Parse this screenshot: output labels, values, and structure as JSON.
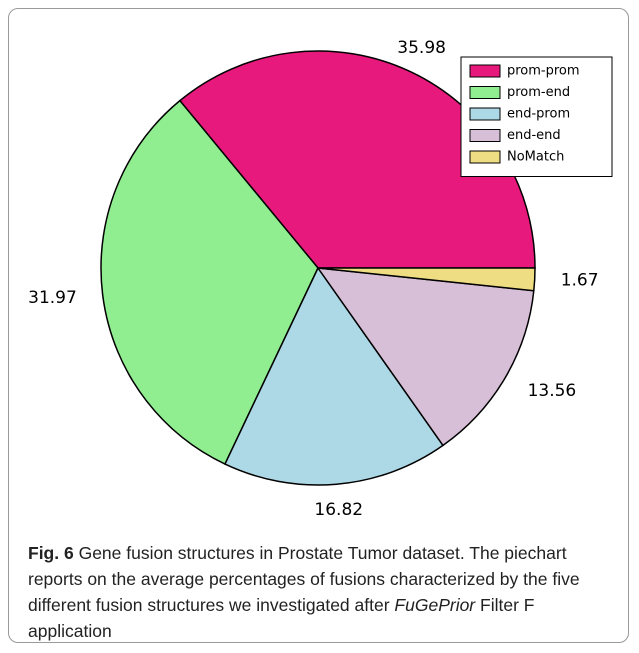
{
  "chart_data": {
    "type": "pie",
    "categories": [
      "prom-prom",
      "prom-end",
      "end-prom",
      "end-end",
      "NoMatch"
    ],
    "values": [
      35.98,
      31.97,
      16.82,
      13.56,
      1.67
    ],
    "colors": [
      "#e8197d",
      "#90ee90",
      "#add8e6",
      "#d8bfd8",
      "#eedd82"
    ],
    "legend": "upper right"
  },
  "caption": {
    "label": "Fig. 6",
    "text": "Gene fusion structures in Prostate Tumor dataset. The piechart reports on the average percentages of fusions characterized by the five different fusion structures we investigated after",
    "emphasis": "FuGePrior",
    "tail": "Filter F application"
  }
}
